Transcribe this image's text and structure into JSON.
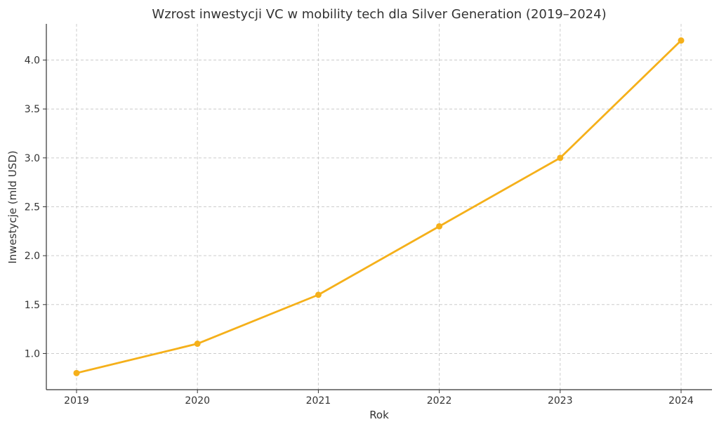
{
  "chart_data": {
    "type": "line",
    "title": "Wzrost inwestycji VC w mobility tech dla Silver Generation (2019–2024)",
    "xlabel": "Rok",
    "ylabel": "Inwestycje (mld USD)",
    "x": [
      2019,
      2020,
      2021,
      2022,
      2023,
      2024
    ],
    "x_tick_labels": [
      "2019",
      "2020",
      "2021",
      "2022",
      "2023",
      "2024"
    ],
    "series": [
      {
        "values": [
          0.8,
          1.1,
          1.6,
          2.3,
          3.0,
          4.2
        ],
        "color": "#f5b01a"
      }
    ],
    "ylim": [
      0.63,
      4.37
    ],
    "y_ticks": [
      1.0,
      1.5,
      2.0,
      2.5,
      3.0,
      3.5,
      4.0
    ],
    "y_tick_labels": [
      "1.0",
      "1.5",
      "2.0",
      "2.5",
      "3.0",
      "3.5",
      "4.0"
    ],
    "grid": true,
    "marker": "circle"
  }
}
